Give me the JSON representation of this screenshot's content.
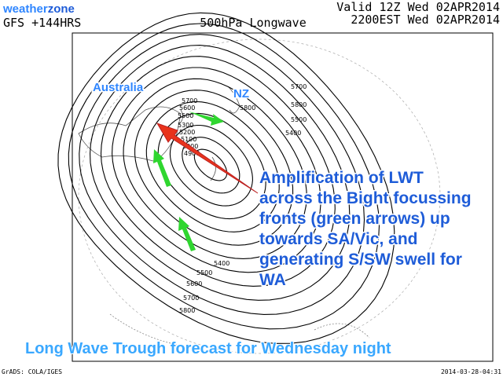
{
  "header": {
    "logo_weather": "weather",
    "logo_zone": "zone",
    "model": "GFS +144HRS",
    "title": "500hPa Longwave",
    "valid_line1": "Valid 12Z Wed 02APR2014",
    "valid_line2": "2200EST Wed 02APR2014"
  },
  "map": {
    "labels": [
      "Australia",
      "NZ"
    ],
    "contour_labels": [
      "5700",
      "5600",
      "5500",
      "5300",
      "5200",
      "5100",
      "5000",
      "4900",
      "5700",
      "5800",
      "5500",
      "5400",
      "5800",
      "5400",
      "5500",
      "5600",
      "5700",
      "5800"
    ],
    "annotation": [
      "Amplification of LWT",
      "across the Bight focussing",
      "fronts (green arrows) up",
      "towards SA/Vic, and",
      "generating S/SW swell for",
      "WA"
    ],
    "caption": "Long Wave Trough forecast for Wednesday night"
  },
  "footer": {
    "source": "GrADS: COLA/IGES",
    "timestamp": "2014-03-28-04:31"
  }
}
